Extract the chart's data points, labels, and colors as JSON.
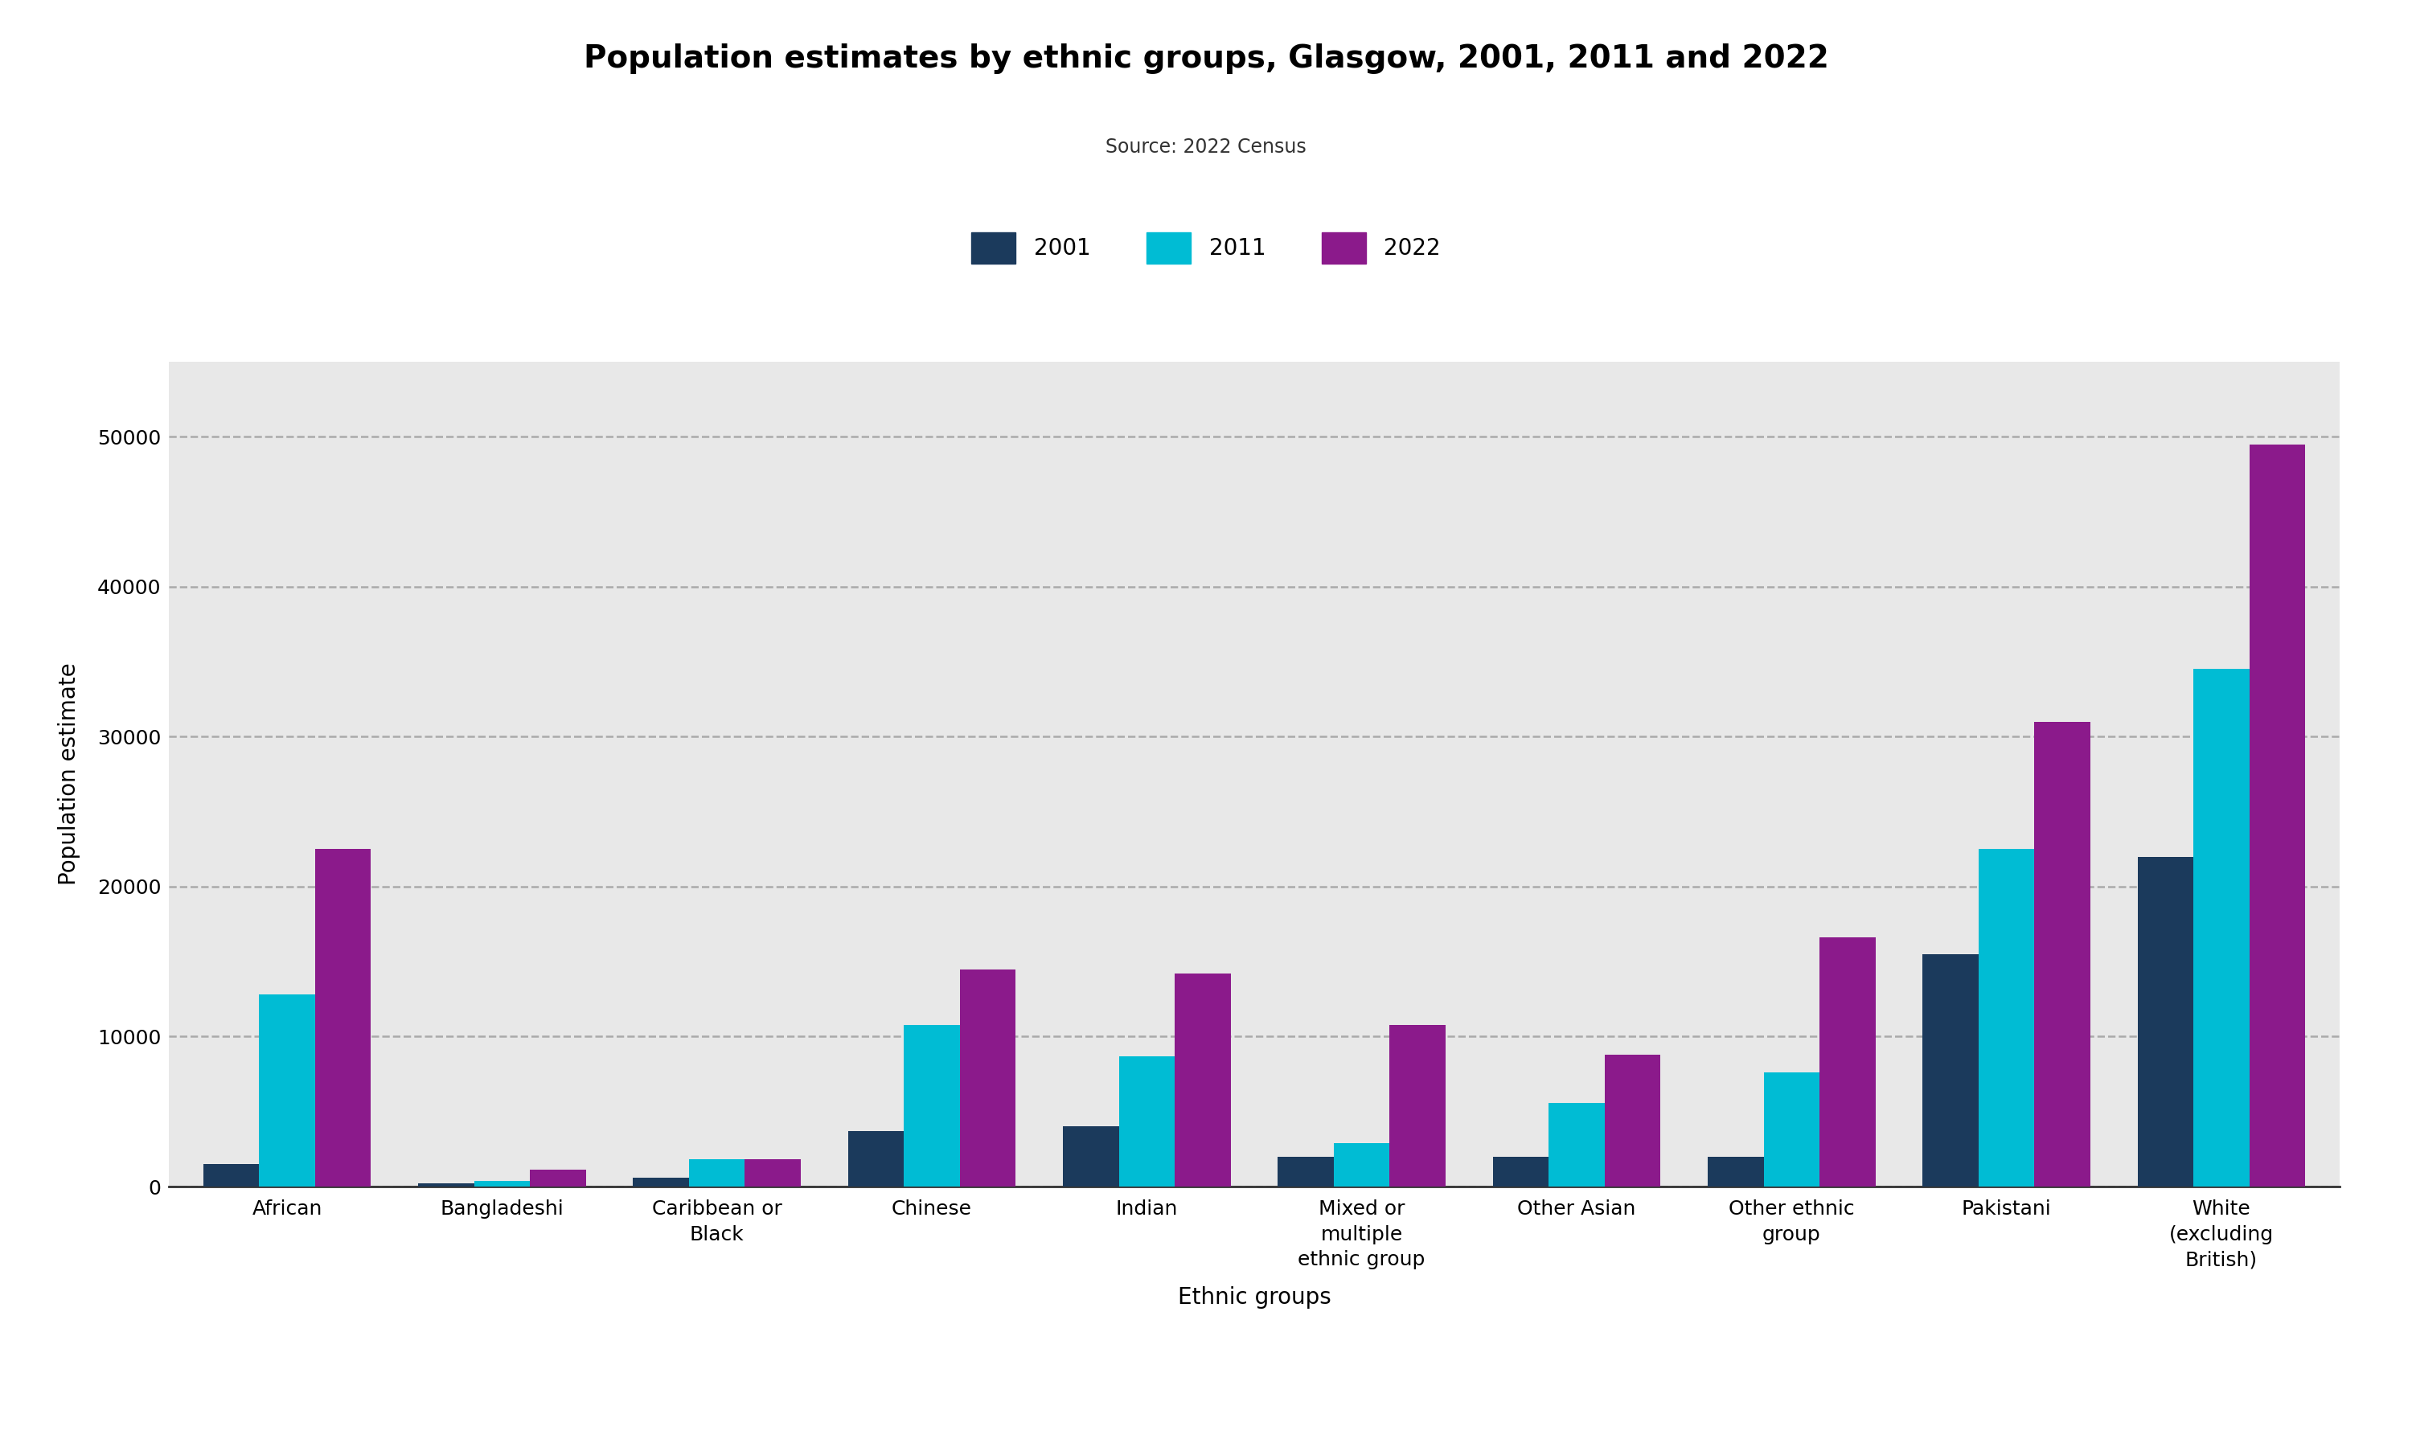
{
  "title": "Population estimates by ethnic groups, Glasgow, 2001, 2011 and 2022",
  "subtitle": "Source: 2022 Census",
  "xlabel": "Ethnic groups",
  "ylabel": "Population estimate",
  "fig_background_color": "#ffffff",
  "plot_background_color": "#e8e8e8",
  "categories": [
    "African",
    "Bangladeshi",
    "Caribbean or\nBlack",
    "Chinese",
    "Indian",
    "Mixed or\nmultiple\nethnic group",
    "Other Asian",
    "Other ethnic\ngroup",
    "Pakistani",
    "White\n(excluding\nBritish)"
  ],
  "years": [
    "2001",
    "2011",
    "2022"
  ],
  "colors": [
    "#1b3a5c",
    "#00bcd4",
    "#8b1a8b"
  ],
  "values": {
    "2001": [
      1500,
      200,
      600,
      3700,
      4000,
      2000,
      2000,
      2000,
      15500,
      22000
    ],
    "2011": [
      12800,
      400,
      1800,
      10800,
      8700,
      2900,
      5600,
      7600,
      22500,
      34500
    ],
    "2022": [
      22500,
      1100,
      1800,
      14500,
      14200,
      10800,
      8800,
      16600,
      31000,
      49500
    ]
  },
  "ylim": [
    0,
    55000
  ],
  "yticks": [
    0,
    10000,
    20000,
    30000,
    40000,
    50000
  ],
  "title_fontsize": 28,
  "subtitle_fontsize": 17,
  "axis_label_fontsize": 20,
  "tick_fontsize": 18,
  "legend_fontsize": 20,
  "bar_width": 0.26
}
